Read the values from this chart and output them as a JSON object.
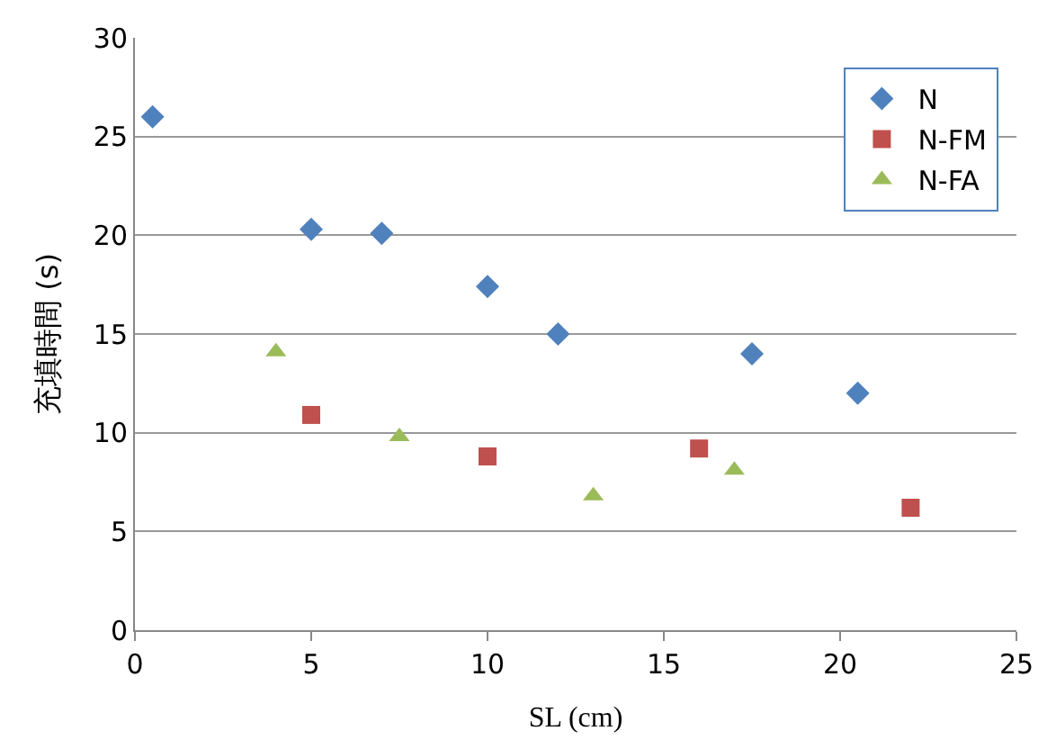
{
  "chart_data": {
    "type": "scatter",
    "xlabel": "SL (cm)",
    "ylabel": "充填時間 (s)",
    "xlim": [
      0,
      25
    ],
    "xticks": [
      0,
      5,
      10,
      15,
      20,
      25
    ],
    "ylim": [
      0,
      30
    ],
    "yticks": [
      0,
      5,
      10,
      15,
      20,
      25,
      30
    ],
    "grid": "y",
    "legend": "top right",
    "series": [
      {
        "name": "N",
        "color": "#4f81bd",
        "marker": "diamond",
        "x": [
          0.5,
          5,
          7,
          10,
          12,
          17.5,
          20.5
        ],
        "values": [
          26,
          20.3,
          20.1,
          17.4,
          15,
          14,
          12
        ]
      },
      {
        "name": "N-FM",
        "color": "#c0504d",
        "marker": "square",
        "x": [
          5,
          10,
          16,
          22
        ],
        "values": [
          10.9,
          8.8,
          9.2,
          6.2
        ]
      },
      {
        "name": "N-FA",
        "color": "#9bbb59",
        "marker": "triangle",
        "x": [
          4,
          7.5,
          13,
          17
        ],
        "values": [
          14.1,
          9.8,
          6.8,
          8.1
        ]
      }
    ]
  }
}
